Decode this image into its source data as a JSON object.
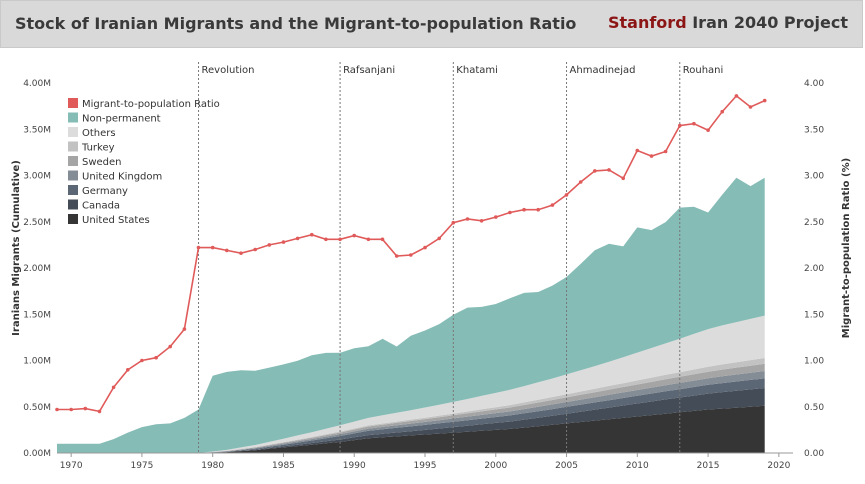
{
  "header": {
    "title": "Stock of Iranian Migrants and the Migrant-to-population  Ratio",
    "brand_highlight": "Stanford",
    "brand_rest": "Iran 2040 Project"
  },
  "chart_data": {
    "type": "area",
    "x_ticks": [
      1970,
      1975,
      1980,
      1985,
      1990,
      1995,
      2000,
      2005,
      2010,
      2015,
      2020
    ],
    "xlim": [
      1969,
      2021
    ],
    "ylabel": "Iranians Migrants (Cumulative)",
    "ylim": [
      0,
      4000000
    ],
    "y_ticks": [
      "0.00M",
      "0.50M",
      "1.00M",
      "1.50M",
      "2.00M",
      "2.50M",
      "3.00M",
      "3.50M",
      "4.00M"
    ],
    "ylabel_right": "Migrant-to-population Ratio (%)",
    "ylim_right": [
      0,
      4
    ],
    "y_ticks_right": [
      "0.00",
      "0.50",
      "1.00",
      "1.50",
      "2.00",
      "2.50",
      "3.00",
      "3.50",
      "4.00"
    ],
    "legend_position": "top-left",
    "grid": false,
    "eras": [
      {
        "label": "Revolution",
        "x": 1979
      },
      {
        "label": "Rafsanjani",
        "x": 1989
      },
      {
        "label": "Khatami",
        "x": 1997
      },
      {
        "label": "Ahmadinejad",
        "x": 2005
      },
      {
        "label": "Rouhani",
        "x": 2013
      }
    ],
    "legend": [
      {
        "name": "Migrant-to-population Ratio",
        "color": "#e05a5a"
      },
      {
        "name": "Non-permanent",
        "color": "#86bcb6"
      },
      {
        "name": "Others",
        "color": "#dcdcdc"
      },
      {
        "name": "Turkey",
        "color": "#c2c2c2"
      },
      {
        "name": "Sweden",
        "color": "#a5a5a5"
      },
      {
        "name": "United Kingdom",
        "color": "#848d96"
      },
      {
        "name": "Germany",
        "color": "#5c6775"
      },
      {
        "name": "Canada",
        "color": "#444c57"
      },
      {
        "name": "United States",
        "color": "#353535"
      }
    ],
    "x": [
      1969,
      1970,
      1971,
      1972,
      1973,
      1974,
      1975,
      1976,
      1977,
      1978,
      1979,
      1980,
      1981,
      1982,
      1983,
      1984,
      1985,
      1986,
      1987,
      1988,
      1989,
      1990,
      1991,
      1992,
      1993,
      1994,
      1995,
      1996,
      1997,
      1998,
      1999,
      2000,
      2001,
      2002,
      2003,
      2004,
      2005,
      2006,
      2007,
      2008,
      2009,
      2010,
      2011,
      2012,
      2013,
      2014,
      2015,
      2016,
      2017,
      2018,
      2019
    ],
    "series": [
      {
        "name": "United States",
        "color": "#353535",
        "values": [
          0,
          0,
          0,
          0,
          0,
          0,
          0,
          0,
          0,
          0,
          0,
          5000,
          10000,
          20000,
          30000,
          45000,
          60000,
          75000,
          90000,
          105000,
          120000,
          140000,
          160000,
          170000,
          180000,
          190000,
          200000,
          210000,
          220000,
          230000,
          240000,
          250000,
          260000,
          275000,
          290000,
          305000,
          320000,
          335000,
          350000,
          365000,
          380000,
          395000,
          410000,
          425000,
          440000,
          455000,
          470000,
          480000,
          490000,
          500000,
          510000
        ]
      },
      {
        "name": "Canada",
        "color": "#444c57",
        "values": [
          0,
          0,
          0,
          0,
          0,
          0,
          0,
          0,
          0,
          0,
          0,
          1000,
          2000,
          4000,
          6000,
          9000,
          12000,
          15000,
          18000,
          22000,
          26000,
          30000,
          34000,
          38000,
          42000,
          46000,
          50000,
          55000,
          60000,
          65000,
          70000,
          75000,
          80000,
          86000,
          92000,
          98000,
          105000,
          112000,
          119000,
          126000,
          133000,
          140000,
          147000,
          154000,
          160000,
          166000,
          172000,
          178000,
          183000,
          188000,
          193000
        ]
      },
      {
        "name": "Germany",
        "color": "#5c6775",
        "values": [
          0,
          0,
          0,
          0,
          0,
          0,
          0,
          0,
          0,
          0,
          0,
          2000,
          4000,
          7000,
          10000,
          14000,
          18000,
          22000,
          27000,
          32000,
          38000,
          42000,
          46000,
          48000,
          50000,
          52000,
          54000,
          56000,
          58000,
          60000,
          62000,
          64000,
          66000,
          68000,
          70000,
          72000,
          74000,
          76000,
          78000,
          80000,
          82000,
          84000,
          86000,
          88000,
          90000,
          92000,
          95000,
          98000,
          100000,
          102000,
          104000
        ]
      },
      {
        "name": "United Kingdom",
        "color": "#848d96",
        "values": [
          0,
          0,
          0,
          0,
          0,
          0,
          0,
          0,
          0,
          0,
          0,
          2000,
          4000,
          6000,
          8000,
          10000,
          12000,
          14000,
          16000,
          18000,
          20000,
          22000,
          24000,
          26000,
          28000,
          30000,
          32000,
          34000,
          36000,
          38000,
          40000,
          42000,
          44000,
          46000,
          48000,
          50000,
          52000,
          54000,
          56000,
          58000,
          60000,
          62000,
          64000,
          66000,
          68000,
          70000,
          72000,
          74000,
          76000,
          78000,
          80000
        ]
      },
      {
        "name": "Sweden",
        "color": "#a5a5a5",
        "values": [
          0,
          0,
          0,
          0,
          0,
          0,
          0,
          0,
          0,
          0,
          0,
          1000,
          2000,
          4000,
          6000,
          8000,
          10000,
          12000,
          14000,
          16000,
          18000,
          20000,
          22000,
          24000,
          26000,
          28000,
          30000,
          32000,
          34000,
          36000,
          38000,
          40000,
          42000,
          44000,
          46000,
          48000,
          50000,
          52000,
          54000,
          56000,
          58000,
          60000,
          62000,
          64000,
          66000,
          68000,
          70000,
          72000,
          74000,
          76000,
          78000
        ]
      },
      {
        "name": "Turkey",
        "color": "#c2c2c2",
        "values": [
          0,
          0,
          0,
          0,
          0,
          0,
          0,
          0,
          0,
          0,
          0,
          1000,
          2000,
          3000,
          4000,
          5000,
          6000,
          7000,
          8000,
          9000,
          10000,
          11000,
          12000,
          13000,
          14000,
          15000,
          16000,
          17000,
          18000,
          20000,
          22000,
          24000,
          26000,
          28000,
          30000,
          32000,
          34000,
          36000,
          38000,
          40000,
          42000,
          44000,
          46000,
          48000,
          50000,
          52000,
          54000,
          56000,
          58000,
          60000,
          62000
        ]
      },
      {
        "name": "Others",
        "color": "#dcdcdc",
        "values": [
          0,
          0,
          0,
          0,
          0,
          0,
          0,
          0,
          0,
          0,
          0,
          4000,
          10000,
          16000,
          22000,
          29000,
          37000,
          45000,
          52000,
          60000,
          68000,
          75000,
          82000,
          89000,
          95000,
          102000,
          110000,
          118000,
          126000,
          135000,
          145000,
          155000,
          165000,
          176000,
          188000,
          200000,
          215000,
          230000,
          245000,
          262000,
          280000,
          300000,
          320000,
          340000,
          362000,
          385000,
          407000,
          422000,
          434000,
          446000,
          458000
        ]
      },
      {
        "name": "Non-permanent",
        "color": "#86bcb6",
        "values": [
          100000,
          100000,
          100000,
          100000,
          150000,
          220000,
          280000,
          310000,
          320000,
          380000,
          470000,
          820000,
          843000,
          835000,
          804000,
          803000,
          803000,
          808000,
          832000,
          820000,
          783000,
          792000,
          774000,
          827000,
          716000,
          804000,
          832000,
          871000,
          943000,
          988000,
          963000,
          961000,
          989000,
          1008000,
          977000,
          1005000,
          1053000,
          1149000,
          1251000,
          1275000,
          1199000,
          1354000,
          1275000,
          1311000,
          1417000,
          1374000,
          1260000,
          1411000,
          1560000,
          1435000,
          1490000
        ]
      },
      {
        "name": "Migrant-to-population Ratio",
        "color": "#e05a5a",
        "axis": "right",
        "values": [
          0.47,
          0.47,
          0.48,
          0.45,
          0.71,
          0.9,
          1.0,
          1.03,
          1.15,
          1.34,
          2.22,
          2.22,
          2.19,
          2.16,
          2.2,
          2.25,
          2.28,
          2.32,
          2.36,
          2.31,
          2.31,
          2.35,
          2.31,
          2.31,
          2.13,
          2.14,
          2.22,
          2.32,
          2.49,
          2.53,
          2.51,
          2.55,
          2.6,
          2.63,
          2.63,
          2.68,
          2.79,
          2.93,
          3.05,
          3.06,
          2.97,
          3.27,
          3.21,
          3.26,
          3.54,
          3.56,
          3.49,
          3.69,
          3.86,
          3.74,
          3.81
        ]
      }
    ]
  }
}
